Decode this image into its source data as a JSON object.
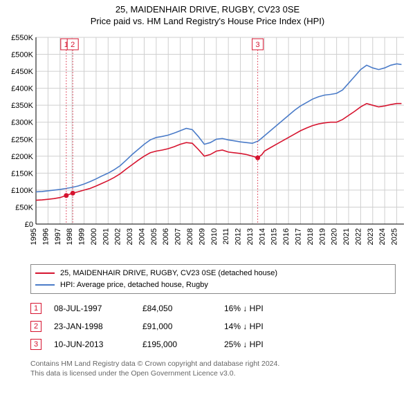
{
  "title1": "25, MAIDENHAIR DRIVE, RUGBY, CV23 0SE",
  "title2": "Price paid vs. HM Land Registry's House Price Index (HPI)",
  "chart": {
    "type": "line",
    "background_color": "#ffffff",
    "grid_color": "#cfcfcf",
    "axis_color": "#000000",
    "x_years": [
      1995,
      1996,
      1997,
      1998,
      1999,
      2000,
      2001,
      2002,
      2003,
      2004,
      2005,
      2006,
      2007,
      2008,
      2009,
      2010,
      2011,
      2012,
      2013,
      2014,
      2015,
      2016,
      2017,
      2018,
      2019,
      2020,
      2021,
      2022,
      2023,
      2024,
      2025
    ],
    "x_domain": [
      1995,
      2025.6
    ],
    "y_domain": [
      0,
      550000
    ],
    "y_ticks": [
      0,
      50000,
      100000,
      150000,
      200000,
      250000,
      300000,
      350000,
      400000,
      450000,
      500000,
      550000
    ],
    "y_tick_labels": [
      "£0",
      "£50K",
      "£100K",
      "£150K",
      "£200K",
      "£250K",
      "£300K",
      "£350K",
      "£400K",
      "£450K",
      "£500K",
      "£550K"
    ],
    "series_red": {
      "label": "25, MAIDENHAIR DRIVE, RUGBY, CV23 0SE (detached house)",
      "color": "#d6142f",
      "line_width": 1.6,
      "points": [
        [
          1995.0,
          70000
        ],
        [
          1995.5,
          71000
        ],
        [
          1996.0,
          73000
        ],
        [
          1996.5,
          75000
        ],
        [
          1997.0,
          78000
        ],
        [
          1997.5,
          84050
        ],
        [
          1998.06,
          91000
        ],
        [
          1998.5,
          95000
        ],
        [
          1999.0,
          100000
        ],
        [
          1999.5,
          105000
        ],
        [
          2000.0,
          112000
        ],
        [
          2000.5,
          120000
        ],
        [
          2001.0,
          128000
        ],
        [
          2001.5,
          137000
        ],
        [
          2002.0,
          148000
        ],
        [
          2002.5,
          162000
        ],
        [
          2003.0,
          175000
        ],
        [
          2003.5,
          188000
        ],
        [
          2004.0,
          200000
        ],
        [
          2004.5,
          210000
        ],
        [
          2005.0,
          215000
        ],
        [
          2005.5,
          218000
        ],
        [
          2006.0,
          222000
        ],
        [
          2006.5,
          228000
        ],
        [
          2007.0,
          235000
        ],
        [
          2007.5,
          240000
        ],
        [
          2008.0,
          238000
        ],
        [
          2008.5,
          220000
        ],
        [
          2009.0,
          200000
        ],
        [
          2009.5,
          205000
        ],
        [
          2010.0,
          215000
        ],
        [
          2010.5,
          218000
        ],
        [
          2011.0,
          212000
        ],
        [
          2011.5,
          210000
        ],
        [
          2012.0,
          208000
        ],
        [
          2012.5,
          205000
        ],
        [
          2013.0,
          200000
        ],
        [
          2013.44,
          195000
        ],
        [
          2013.8,
          205000
        ],
        [
          2014.0,
          215000
        ],
        [
          2014.5,
          225000
        ],
        [
          2015.0,
          235000
        ],
        [
          2015.5,
          245000
        ],
        [
          2016.0,
          255000
        ],
        [
          2016.5,
          265000
        ],
        [
          2017.0,
          275000
        ],
        [
          2017.5,
          283000
        ],
        [
          2018.0,
          290000
        ],
        [
          2018.5,
          295000
        ],
        [
          2019.0,
          298000
        ],
        [
          2019.5,
          300000
        ],
        [
          2020.0,
          300000
        ],
        [
          2020.5,
          308000
        ],
        [
          2021.0,
          320000
        ],
        [
          2021.5,
          332000
        ],
        [
          2022.0,
          345000
        ],
        [
          2022.5,
          355000
        ],
        [
          2023.0,
          350000
        ],
        [
          2023.5,
          345000
        ],
        [
          2024.0,
          348000
        ],
        [
          2024.5,
          352000
        ],
        [
          2025.0,
          355000
        ],
        [
          2025.4,
          355000
        ]
      ]
    },
    "series_blue": {
      "label": "HPI: Average price, detached house, Rugby",
      "color": "#4a7bc8",
      "line_width": 1.6,
      "points": [
        [
          1995.0,
          95000
        ],
        [
          1995.5,
          96000
        ],
        [
          1996.0,
          98000
        ],
        [
          1996.5,
          100000
        ],
        [
          1997.0,
          102000
        ],
        [
          1997.5,
          105000
        ],
        [
          1998.0,
          108000
        ],
        [
          1998.5,
          112000
        ],
        [
          1999.0,
          118000
        ],
        [
          1999.5,
          125000
        ],
        [
          2000.0,
          133000
        ],
        [
          2000.5,
          142000
        ],
        [
          2001.0,
          150000
        ],
        [
          2001.5,
          160000
        ],
        [
          2002.0,
          172000
        ],
        [
          2002.5,
          188000
        ],
        [
          2003.0,
          205000
        ],
        [
          2003.5,
          220000
        ],
        [
          2004.0,
          235000
        ],
        [
          2004.5,
          248000
        ],
        [
          2005.0,
          255000
        ],
        [
          2005.5,
          258000
        ],
        [
          2006.0,
          262000
        ],
        [
          2006.5,
          268000
        ],
        [
          2007.0,
          275000
        ],
        [
          2007.5,
          282000
        ],
        [
          2008.0,
          278000
        ],
        [
          2008.5,
          258000
        ],
        [
          2009.0,
          235000
        ],
        [
          2009.5,
          240000
        ],
        [
          2010.0,
          250000
        ],
        [
          2010.5,
          252000
        ],
        [
          2011.0,
          248000
        ],
        [
          2011.5,
          245000
        ],
        [
          2012.0,
          242000
        ],
        [
          2012.5,
          240000
        ],
        [
          2013.0,
          238000
        ],
        [
          2013.5,
          245000
        ],
        [
          2014.0,
          260000
        ],
        [
          2014.5,
          275000
        ],
        [
          2015.0,
          290000
        ],
        [
          2015.5,
          305000
        ],
        [
          2016.0,
          320000
        ],
        [
          2016.5,
          335000
        ],
        [
          2017.0,
          348000
        ],
        [
          2017.5,
          358000
        ],
        [
          2018.0,
          368000
        ],
        [
          2018.5,
          375000
        ],
        [
          2019.0,
          380000
        ],
        [
          2019.5,
          382000
        ],
        [
          2020.0,
          385000
        ],
        [
          2020.5,
          395000
        ],
        [
          2021.0,
          415000
        ],
        [
          2021.5,
          435000
        ],
        [
          2022.0,
          455000
        ],
        [
          2022.5,
          468000
        ],
        [
          2023.0,
          460000
        ],
        [
          2023.5,
          455000
        ],
        [
          2024.0,
          460000
        ],
        [
          2024.5,
          468000
        ],
        [
          2025.0,
          472000
        ],
        [
          2025.4,
          470000
        ]
      ]
    },
    "sale_markers": [
      {
        "n": "1",
        "x": 1997.52,
        "y": 84050
      },
      {
        "n": "2",
        "x": 1998.06,
        "y": 91000
      },
      {
        "n": "3",
        "x": 2013.44,
        "y": 195000
      }
    ],
    "marker_line_color": "#d6142f",
    "marker_dot_color": "#d6142f",
    "marker_box_border": "#d6142f",
    "marker_box_text": "#d6142f",
    "marker_dash": "2,2"
  },
  "legend": {
    "items": [
      {
        "color": "#d6142f",
        "label": "25, MAIDENHAIR DRIVE, RUGBY, CV23 0SE (detached house)"
      },
      {
        "color": "#4a7bc8",
        "label": "HPI: Average price, detached house, Rugby"
      }
    ]
  },
  "sales": [
    {
      "n": "1",
      "date": "08-JUL-1997",
      "price": "£84,050",
      "diff": "16% ↓ HPI"
    },
    {
      "n": "2",
      "date": "23-JAN-1998",
      "price": "£91,000",
      "diff": "14% ↓ HPI"
    },
    {
      "n": "3",
      "date": "10-JUN-2013",
      "price": "£195,000",
      "diff": "25% ↓ HPI"
    }
  ],
  "footer_line1": "Contains HM Land Registry data © Crown copyright and database right 2024.",
  "footer_line2": "This data is licensed under the Open Government Licence v3.0."
}
